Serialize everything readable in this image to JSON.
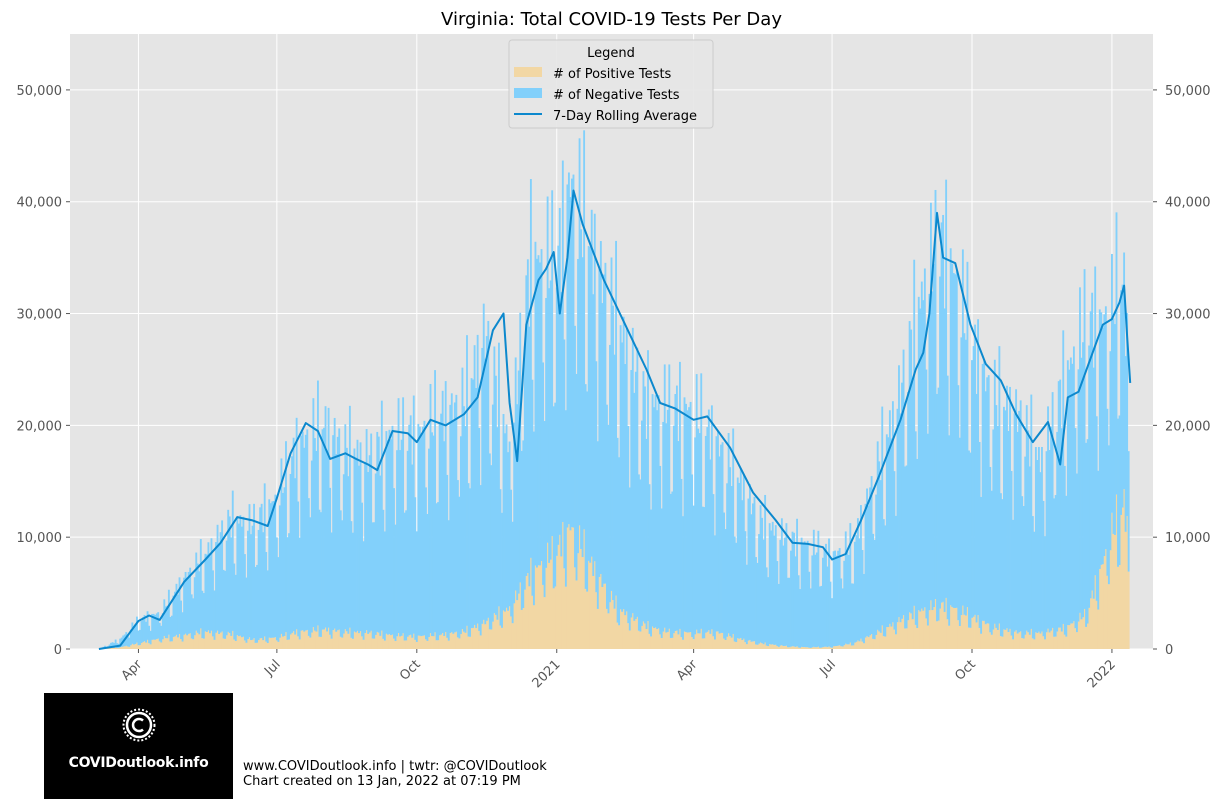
{
  "chart_data": {
    "type": "bar",
    "title": "Virginia: Total COVID-19 Tests Per Day",
    "xlabel": "",
    "ylabel": "",
    "x_tick_labels": [
      "Apr",
      "Jul",
      "Oct",
      "2021",
      "Apr",
      "Jul",
      "Oct",
      "2022"
    ],
    "x_tick_dates": [
      "2020-04-01",
      "2020-07-01",
      "2020-10-01",
      "2021-01-01",
      "2021-04-01",
      "2021-07-01",
      "2021-10-01",
      "2022-01-01"
    ],
    "xlim": [
      "2020-02-16",
      "2022-01-28"
    ],
    "ylim": [
      0,
      55000
    ],
    "y_ticks": [
      0,
      10000,
      20000,
      30000,
      40000,
      50000
    ],
    "y_tick_labels": [
      "0",
      "10,000",
      "20,000",
      "30,000",
      "40,000",
      "50,000"
    ],
    "y_axis_right_mirror": true,
    "grid": true,
    "stacked": true,
    "legend": {
      "title": "Legend",
      "placement": "top-center",
      "entries": [
        "# of Positive Tests",
        "# of Negative Tests",
        "7-Day Rolling Average"
      ]
    },
    "colors": {
      "positive": "#f2d7a4",
      "negative": "#82d0fb",
      "average": "#0c88cd",
      "background": "#e5e5e5",
      "grid": "#ffffff"
    },
    "series": [
      {
        "name": "# of Positive Tests",
        "kind": "bar",
        "points": [
          [
            "2020-03-06",
            0
          ],
          [
            "2020-03-20",
            150
          ],
          [
            "2020-04-01",
            500
          ],
          [
            "2020-04-15",
            900
          ],
          [
            "2020-05-01",
            1200
          ],
          [
            "2020-05-15",
            1500
          ],
          [
            "2020-06-01",
            1300
          ],
          [
            "2020-06-15",
            800
          ],
          [
            "2020-07-01",
            1000
          ],
          [
            "2020-07-15",
            1500
          ],
          [
            "2020-08-01",
            1700
          ],
          [
            "2020-08-15",
            1500
          ],
          [
            "2020-09-01",
            1400
          ],
          [
            "2020-09-15",
            1200
          ],
          [
            "2020-10-01",
            1100
          ],
          [
            "2020-10-15",
            1200
          ],
          [
            "2020-11-01",
            1500
          ],
          [
            "2020-11-15",
            2300
          ],
          [
            "2020-12-01",
            3500
          ],
          [
            "2020-12-15",
            6500
          ],
          [
            "2021-01-01",
            8500
          ],
          [
            "2021-01-10",
            10500
          ],
          [
            "2021-01-25",
            7000
          ],
          [
            "2021-02-10",
            3500
          ],
          [
            "2021-03-01",
            2000
          ],
          [
            "2021-03-15",
            1500
          ],
          [
            "2021-04-01",
            1400
          ],
          [
            "2021-04-15",
            1500
          ],
          [
            "2021-05-01",
            900
          ],
          [
            "2021-05-15",
            500
          ],
          [
            "2021-06-01",
            250
          ],
          [
            "2021-06-15",
            150
          ],
          [
            "2021-07-01",
            200
          ],
          [
            "2021-07-15",
            500
          ],
          [
            "2021-08-01",
            1500
          ],
          [
            "2021-08-15",
            2500
          ],
          [
            "2021-09-01",
            3500
          ],
          [
            "2021-09-10",
            3800
          ],
          [
            "2021-09-20",
            3500
          ],
          [
            "2021-10-01",
            2800
          ],
          [
            "2021-10-15",
            1900
          ],
          [
            "2021-11-01",
            1400
          ],
          [
            "2021-11-15",
            1400
          ],
          [
            "2021-12-01",
            1800
          ],
          [
            "2021-12-15",
            3000
          ],
          [
            "2021-12-25",
            7000
          ],
          [
            "2022-01-01",
            10000
          ],
          [
            "2022-01-06",
            11500
          ],
          [
            "2022-01-09",
            12500
          ],
          [
            "2022-01-12",
            9000
          ]
        ]
      },
      {
        "name": "# of Negative Tests",
        "kind": "bar",
        "points": [
          [
            "2020-03-06",
            0
          ],
          [
            "2020-03-20",
            700
          ],
          [
            "2020-04-01",
            2000
          ],
          [
            "2020-04-15",
            2200
          ],
          [
            "2020-05-01",
            4800
          ],
          [
            "2020-05-15",
            6600
          ],
          [
            "2020-06-01",
            9800
          ],
          [
            "2020-06-15",
            9900
          ],
          [
            "2020-07-01",
            12000
          ],
          [
            "2020-07-15",
            16000
          ],
          [
            "2020-08-01",
            17500
          ],
          [
            "2020-08-15",
            15500
          ],
          [
            "2020-09-01",
            15100
          ],
          [
            "2020-09-15",
            17300
          ],
          [
            "2020-10-01",
            17300
          ],
          [
            "2020-10-15",
            18800
          ],
          [
            "2020-11-01",
            19500
          ],
          [
            "2020-11-15",
            24700
          ],
          [
            "2020-12-01",
            13500
          ],
          [
            "2020-12-15",
            27000
          ],
          [
            "2021-01-01",
            24500
          ],
          [
            "2021-01-10",
            29500
          ],
          [
            "2021-01-25",
            27000
          ],
          [
            "2021-02-10",
            24500
          ],
          [
            "2021-03-01",
            19000
          ],
          [
            "2021-03-15",
            19500
          ],
          [
            "2021-04-01",
            19100
          ],
          [
            "2021-04-15",
            16500
          ],
          [
            "2021-05-01",
            13600
          ],
          [
            "2021-05-15",
            10500
          ],
          [
            "2021-06-01",
            9250
          ],
          [
            "2021-06-15",
            8850
          ],
          [
            "2021-07-01",
            7800
          ],
          [
            "2021-07-15",
            8500
          ],
          [
            "2021-08-01",
            14500
          ],
          [
            "2021-08-15",
            19500
          ],
          [
            "2021-09-01",
            28500
          ],
          [
            "2021-09-10",
            31200
          ],
          [
            "2021-09-20",
            28500
          ],
          [
            "2021-10-01",
            23200
          ],
          [
            "2021-10-15",
            19600
          ],
          [
            "2021-11-01",
            18600
          ],
          [
            "2021-11-15",
            14600
          ],
          [
            "2021-12-01",
            21200
          ],
          [
            "2021-12-15",
            25000
          ],
          [
            "2021-12-25",
            21000
          ],
          [
            "2022-01-01",
            19000
          ],
          [
            "2022-01-06",
            20500
          ],
          [
            "2022-01-09",
            18500
          ],
          [
            "2022-01-12",
            14000
          ]
        ]
      },
      {
        "name": "7-Day Rolling Average",
        "kind": "line",
        "points": [
          [
            "2020-03-06",
            0
          ],
          [
            "2020-03-20",
            300
          ],
          [
            "2020-04-01",
            2500
          ],
          [
            "2020-04-08",
            3000
          ],
          [
            "2020-04-15",
            2600
          ],
          [
            "2020-05-01",
            6000
          ],
          [
            "2020-05-15",
            8000
          ],
          [
            "2020-05-25",
            9500
          ],
          [
            "2020-06-05",
            11800
          ],
          [
            "2020-06-15",
            11500
          ],
          [
            "2020-06-25",
            11000
          ],
          [
            "2020-07-01",
            13500
          ],
          [
            "2020-07-10",
            17500
          ],
          [
            "2020-07-20",
            20200
          ],
          [
            "2020-07-28",
            19500
          ],
          [
            "2020-08-05",
            17000
          ],
          [
            "2020-08-15",
            17500
          ],
          [
            "2020-08-22",
            17000
          ],
          [
            "2020-08-30",
            16500
          ],
          [
            "2020-09-05",
            16000
          ],
          [
            "2020-09-15",
            19500
          ],
          [
            "2020-09-25",
            19300
          ],
          [
            "2020-10-01",
            18500
          ],
          [
            "2020-10-10",
            20500
          ],
          [
            "2020-10-20",
            20000
          ],
          [
            "2020-11-01",
            21000
          ],
          [
            "2020-11-10",
            22500
          ],
          [
            "2020-11-20",
            28500
          ],
          [
            "2020-11-27",
            30000
          ],
          [
            "2020-12-01",
            22000
          ],
          [
            "2020-12-06",
            16800
          ],
          [
            "2020-12-12",
            29000
          ],
          [
            "2020-12-20",
            33000
          ],
          [
            "2020-12-25",
            34000
          ],
          [
            "2020-12-30",
            35500
          ],
          [
            "2021-01-03",
            30000
          ],
          [
            "2021-01-08",
            35000
          ],
          [
            "2021-01-12",
            41000
          ],
          [
            "2021-01-18",
            38000
          ],
          [
            "2021-02-01",
            33000
          ],
          [
            "2021-02-15",
            29000
          ],
          [
            "2021-03-01",
            25000
          ],
          [
            "2021-03-10",
            22000
          ],
          [
            "2021-03-20",
            21500
          ],
          [
            "2021-04-01",
            20500
          ],
          [
            "2021-04-10",
            20800
          ],
          [
            "2021-04-25",
            18000
          ],
          [
            "2021-05-10",
            14000
          ],
          [
            "2021-05-25",
            11500
          ],
          [
            "2021-06-05",
            9500
          ],
          [
            "2021-06-15",
            9400
          ],
          [
            "2021-06-25",
            9100
          ],
          [
            "2021-07-01",
            8000
          ],
          [
            "2021-07-10",
            8500
          ],
          [
            "2021-07-20",
            11500
          ],
          [
            "2021-08-01",
            15500
          ],
          [
            "2021-08-15",
            20500
          ],
          [
            "2021-08-25",
            25000
          ],
          [
            "2021-08-30",
            26500
          ],
          [
            "2021-09-03",
            30000
          ],
          [
            "2021-09-08",
            39000
          ],
          [
            "2021-09-12",
            35000
          ],
          [
            "2021-09-20",
            34500
          ],
          [
            "2021-09-30",
            29000
          ],
          [
            "2021-10-10",
            25500
          ],
          [
            "2021-10-20",
            24000
          ],
          [
            "2021-10-30",
            21000
          ],
          [
            "2021-11-10",
            18500
          ],
          [
            "2021-11-20",
            20300
          ],
          [
            "2021-11-28",
            16500
          ],
          [
            "2021-12-03",
            22500
          ],
          [
            "2021-12-10",
            23000
          ],
          [
            "2021-12-18",
            26000
          ],
          [
            "2021-12-26",
            29000
          ],
          [
            "2022-01-01",
            29500
          ],
          [
            "2022-01-06",
            31000
          ],
          [
            "2022-01-09",
            32500
          ],
          [
            "2022-01-11",
            28000
          ],
          [
            "2022-01-13",
            23800
          ]
        ]
      }
    ]
  },
  "footer": {
    "logo_text": "COVIDoutlook.info",
    "credits_line1": "www.COVIDoutlook.info | twtr: @COVIDoutlook",
    "credits_line2": "Chart created on 13 Jan, 2022 at 07:19 PM"
  }
}
